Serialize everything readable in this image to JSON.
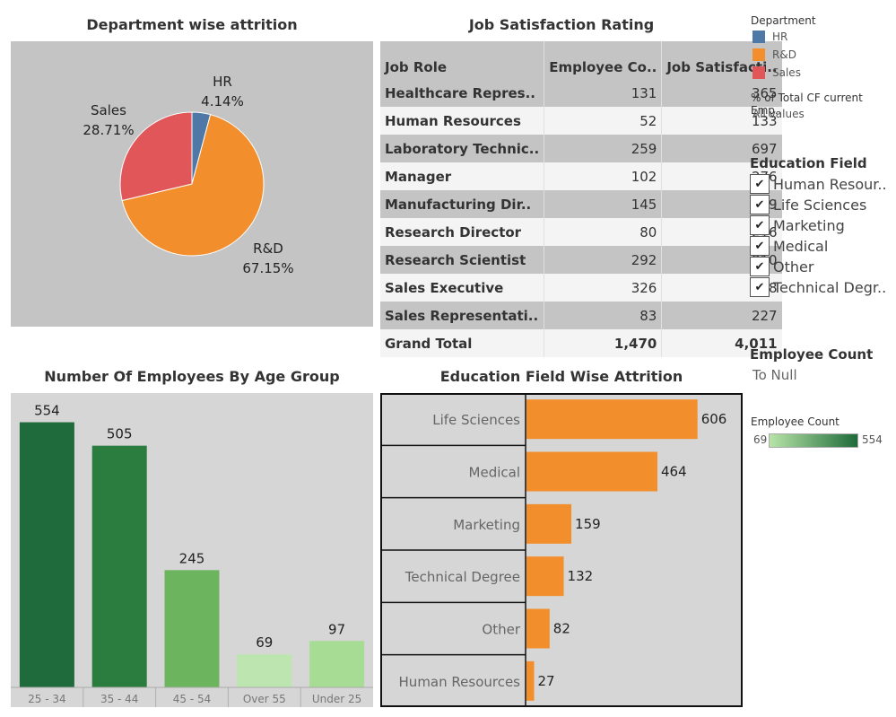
{
  "pie": {
    "title": "Department wise attrition",
    "slices": [
      {
        "name": "HR",
        "label": "4.14%",
        "value": 4.14,
        "color": "#4e79a7"
      },
      {
        "name": "R&D",
        "label": "67.15%",
        "value": 67.15,
        "color": "#f28e2b"
      },
      {
        "name": "Sales",
        "label": "28.71%",
        "value": 28.71,
        "color": "#e15759"
      }
    ]
  },
  "table": {
    "title": "Job Satisfaction Rating",
    "headers": [
      "Job Role",
      "Employee Co..",
      "Job Satisfacti.."
    ],
    "rows": [
      [
        "Healthcare Repres..",
        "131",
        "365"
      ],
      [
        "Human Resources",
        "52",
        "133"
      ],
      [
        "Laboratory Technic..",
        "259",
        "697"
      ],
      [
        "Manager",
        "102",
        "276"
      ],
      [
        "Manufacturing Dir..",
        "145",
        "389"
      ],
      [
        "Research Director",
        "80",
        "216"
      ],
      [
        "Research Scientist",
        "292",
        "810"
      ],
      [
        "Sales Executive",
        "326",
        "898"
      ],
      [
        "Sales Representati..",
        "83",
        "227"
      ]
    ],
    "total": [
      "Grand Total",
      "1,470",
      "4,011"
    ]
  },
  "legend": {
    "department_title": "Department",
    "department_items": [
      {
        "label": "HR",
        "color": "#4e79a7"
      },
      {
        "label": "R&D",
        "color": "#f28e2b"
      },
      {
        "label": "Sales",
        "color": "#e15759"
      }
    ],
    "pct_title": "% of Total CF current Emp..",
    "pct_value": "All values",
    "education_title": "Education Field",
    "education_items": [
      "Human Resour..",
      "Life Sciences",
      "Marketing",
      "Medical",
      "Other",
      "Technical Degr.."
    ],
    "check_glyph": "✔",
    "emp_count_title": "Employee Count",
    "emp_count_value": "To Null",
    "gradient_title": "Employee Count",
    "gradient_min": "69",
    "gradient_max": "554",
    "gradient_colors": [
      "#b8e4a8",
      "#1e6b3a"
    ]
  },
  "chart_data": [
    {
      "type": "bar",
      "title": "Number Of Employees By Age Group",
      "categories": [
        "25 - 34",
        "35 - 44",
        "45 - 54",
        "Over 55",
        "Under 25"
      ],
      "values": [
        554,
        505,
        245,
        69,
        97
      ],
      "colors": [
        "#1f6b3b",
        "#2a7d3f",
        "#6db45e",
        "#bde5b0",
        "#a6dc93"
      ],
      "ylim": [
        0,
        600
      ]
    },
    {
      "type": "bar",
      "orientation": "horizontal",
      "title": "Education Field Wise Attrition",
      "categories": [
        "Life Sciences",
        "Medical",
        "Marketing",
        "Technical Degree",
        "Other",
        "Human Resources"
      ],
      "values": [
        606,
        464,
        159,
        132,
        82,
        27
      ],
      "color": "#f28e2b",
      "xlim": [
        0,
        750
      ]
    }
  ]
}
